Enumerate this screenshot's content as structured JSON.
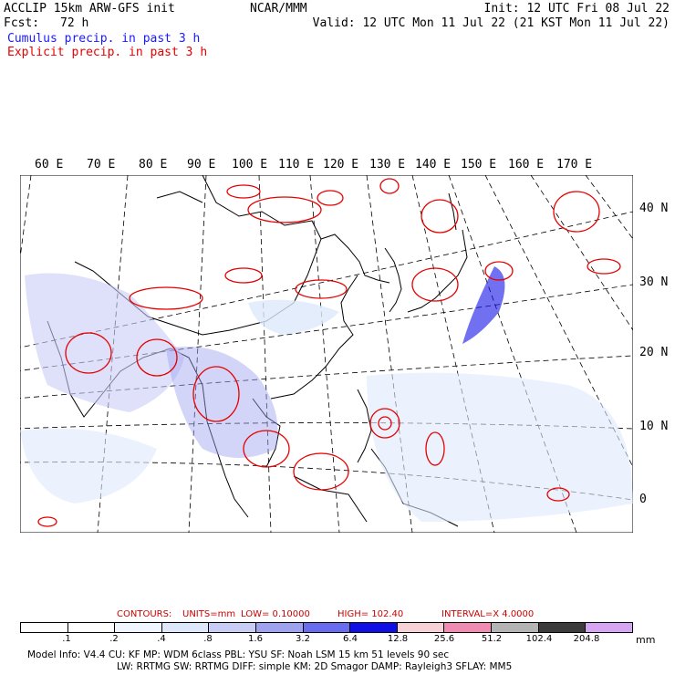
{
  "header": {
    "model_title": "ACCLIP 15km ARW-GFS init",
    "fcst_label": "Fcst:",
    "fcst_value": "72 h",
    "center": "NCAR/MMM",
    "init": "Init: 12 UTC Fri 08 Jul 22",
    "valid": "Valid: 12 UTC Mon 11 Jul 22 (21 KST Mon 11 Jul 22)",
    "legend_cumulus": "Cumulus precip. in past 3 h",
    "legend_explicit": "Explicit precip. in past 3 h"
  },
  "colors": {
    "cumulus": "#1a1aff",
    "explicit": "#e60000",
    "coast": "#000000",
    "grid": "#000000"
  },
  "map": {
    "lon_labels": [
      "60 E",
      "70 E",
      "80 E",
      "90 E",
      "100 E",
      "110 E",
      "120 E",
      "130 E",
      "140 E",
      "150 E",
      "160 E",
      "170 E"
    ],
    "lat_labels": [
      "40 N",
      "30 N",
      "20 N",
      "10 N",
      "0"
    ]
  },
  "contours": {
    "label": "CONTOURS:",
    "units": "UNITS=mm",
    "low": "LOW=  0.10000",
    "high": "HIGH=  102.40",
    "interval": "INTERVAL=X  4.0000"
  },
  "scale": {
    "ticks": [
      ".1",
      ".2",
      ".4",
      ".8",
      "1.6",
      "3.2",
      "6.4",
      "12.8",
      "25.6",
      "51.2",
      "102.4",
      "204.8"
    ],
    "unit": "mm",
    "colors": [
      "#ffffff",
      "#ffffff",
      "#f0f6ff",
      "#dde9fb",
      "#c8cdf5",
      "#9ea2ef",
      "#6a6cf0",
      "#1010e6",
      "#f6d2d6",
      "#f08cb2",
      "#b4b4b4",
      "#3c3c3c",
      "#d6a6f2"
    ]
  },
  "footer": {
    "line1": "Model Info: V4.4      CU: KF       MP: WDM 6class   PBL: YSU       SF: Noah LSM      15 km    51 levels    90 sec",
    "line2": "LW: RRTMG     SW: RRTMG    DIFF: simple  KM: 2D Smagor  DAMP: Rayleigh3   SFLAY: MM5"
  }
}
